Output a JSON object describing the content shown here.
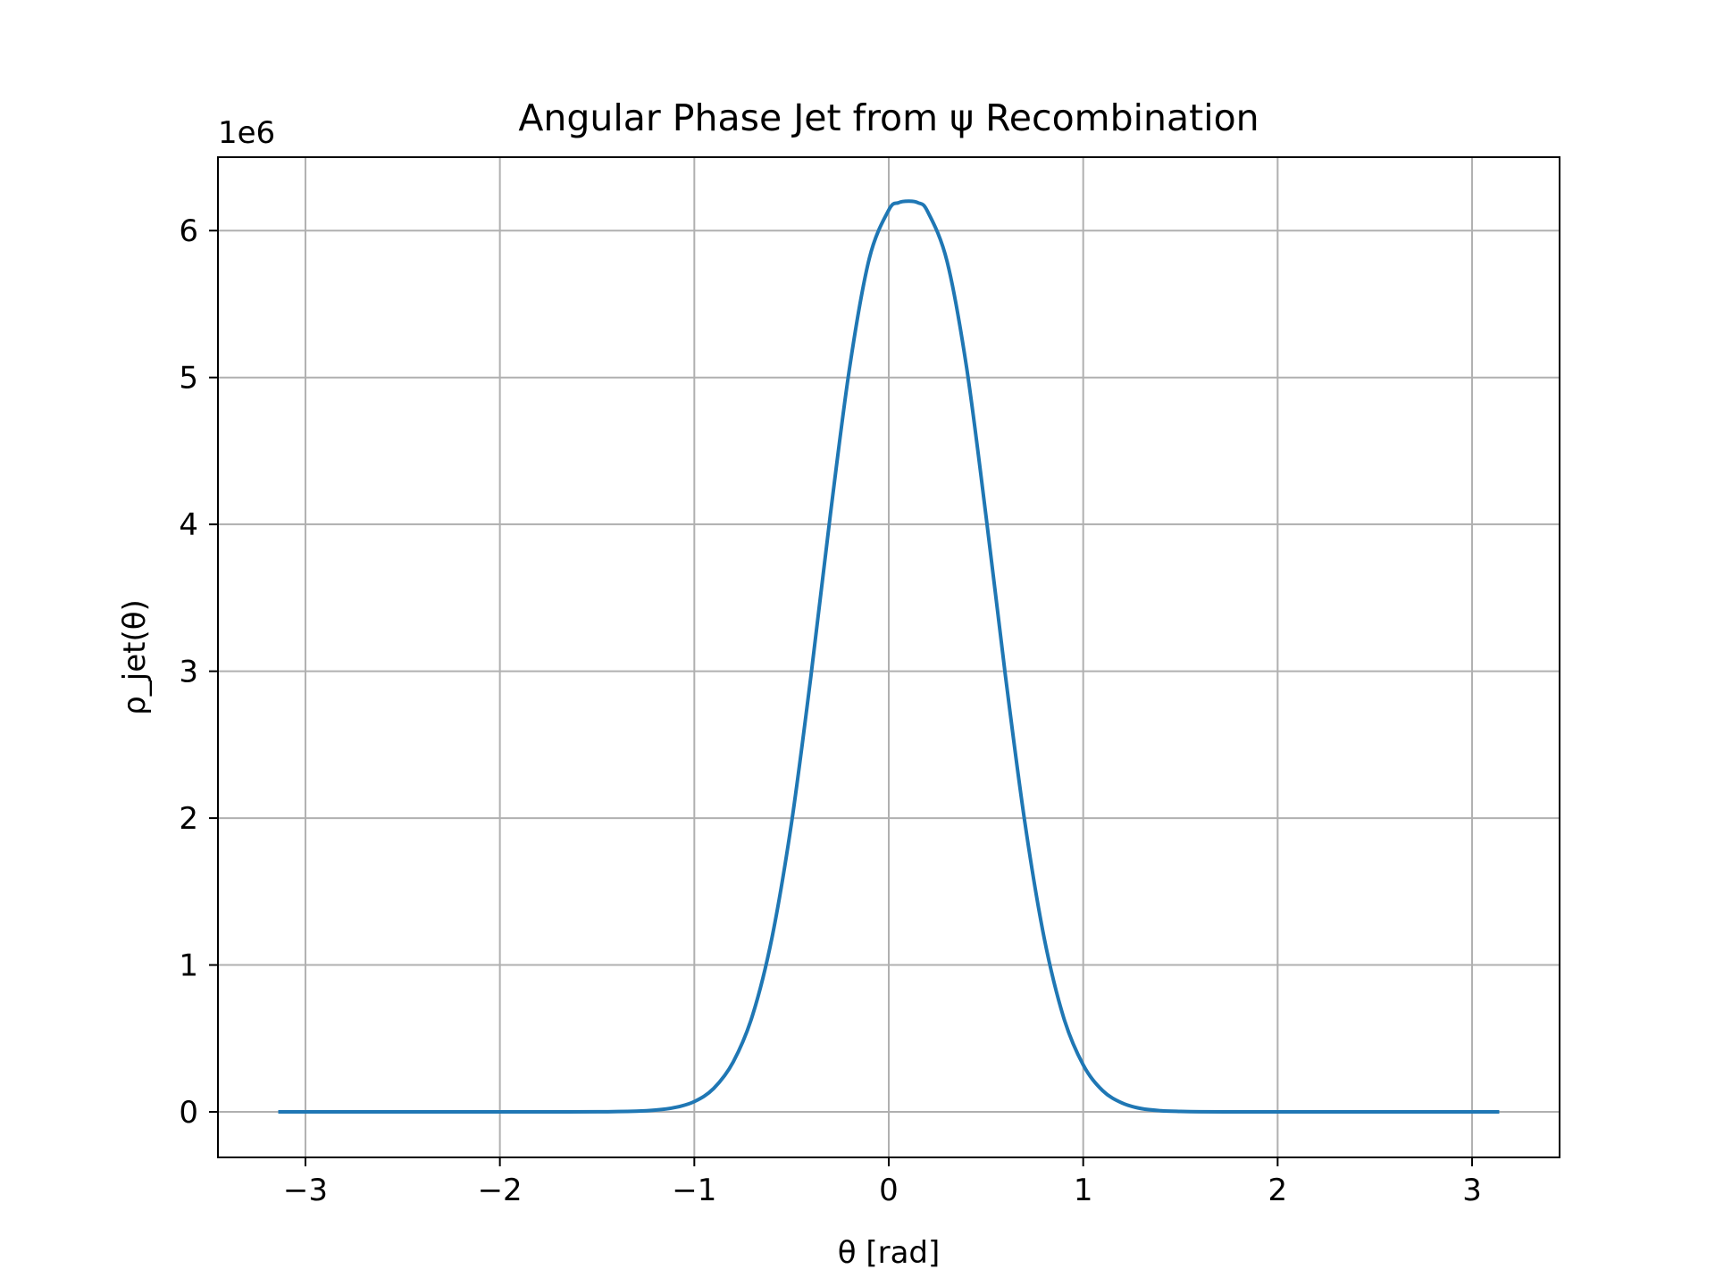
{
  "chart_data": {
    "type": "line",
    "title": "Angular Phase Jet from ψ Recombination",
    "xlabel": "θ [rad]",
    "ylabel": "ρ_jet(θ)",
    "y_offset_label": "1e6",
    "y_scale": 1000000,
    "xlim": [
      -3.45,
      3.45
    ],
    "ylim": [
      -0.31,
      6.5
    ],
    "x_ticks": [
      -3,
      -2,
      -1,
      0,
      1,
      2,
      3
    ],
    "x_tick_labels": [
      "−3",
      "−2",
      "−1",
      "0",
      "1",
      "2",
      "3"
    ],
    "y_ticks": [
      0,
      1,
      2,
      3,
      4,
      5,
      6
    ],
    "y_tick_labels": [
      "0",
      "1",
      "2",
      "3",
      "4",
      "5",
      "6"
    ],
    "grid": true,
    "line_color": "#1f77b4",
    "series": [
      {
        "x": [
          -3.14,
          -2.5,
          -2.0,
          -1.5,
          -1.3,
          -1.2,
          -1.1,
          -1.0,
          -0.9,
          -0.8,
          -0.7,
          -0.6,
          -0.5,
          -0.4,
          -0.3,
          -0.2,
          -0.1,
          0.0,
          0.05,
          0.1,
          0.15,
          0.2,
          0.3,
          0.4,
          0.5,
          0.6,
          0.7,
          0.8,
          0.9,
          1.0,
          1.1,
          1.2,
          1.3,
          1.4,
          1.5,
          1.6,
          1.8,
          2.0,
          2.5,
          3.14
        ],
        "y": [
          0.0,
          0.0,
          0.0,
          0.001,
          0.005,
          0.012,
          0.03,
          0.07,
          0.16,
          0.34,
          0.66,
          1.19,
          1.97,
          2.97,
          4.07,
          5.08,
          5.81,
          6.14,
          6.19,
          6.2,
          6.19,
          6.13,
          5.79,
          5.07,
          4.06,
          2.97,
          1.97,
          1.18,
          0.64,
          0.32,
          0.145,
          0.06,
          0.022,
          0.008,
          0.003,
          0.001,
          0.0,
          0.0,
          0.0,
          0.0
        ]
      }
    ]
  }
}
